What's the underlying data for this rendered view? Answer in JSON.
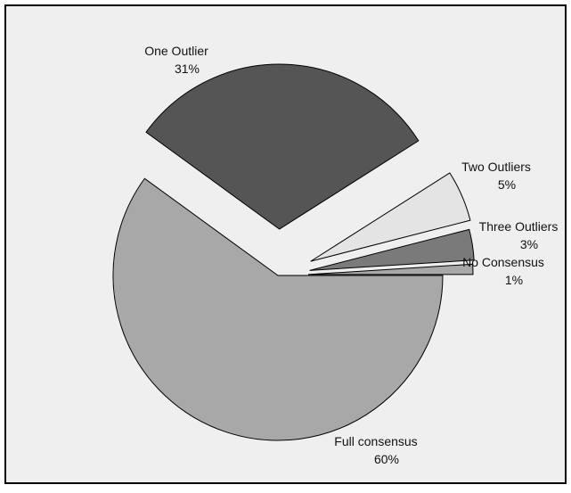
{
  "chart_data": {
    "type": "pie",
    "title": "",
    "slices": [
      {
        "label": "Full consensus",
        "value": 60,
        "value_label": "60%",
        "color": "#a8a8a8"
      },
      {
        "label": "One Outlier",
        "value": 31,
        "value_label": "31%",
        "color": "#555555"
      },
      {
        "label": "Two Outliers",
        "value": 5,
        "value_label": "5%",
        "color": "#e4e4e4"
      },
      {
        "label": "Three Outliers",
        "value": 3,
        "value_label": "3%",
        "color": "#7a7a7a"
      },
      {
        "label": "No Consensus",
        "value": 1,
        "value_label": "1%",
        "color": "#a8a8a8"
      }
    ],
    "exploded_slices": [
      "One Outlier",
      "Two Outliers",
      "Three Outliers",
      "No Consensus"
    ],
    "background_color": "#efefef",
    "border_color": "#000000",
    "legend": "none"
  }
}
